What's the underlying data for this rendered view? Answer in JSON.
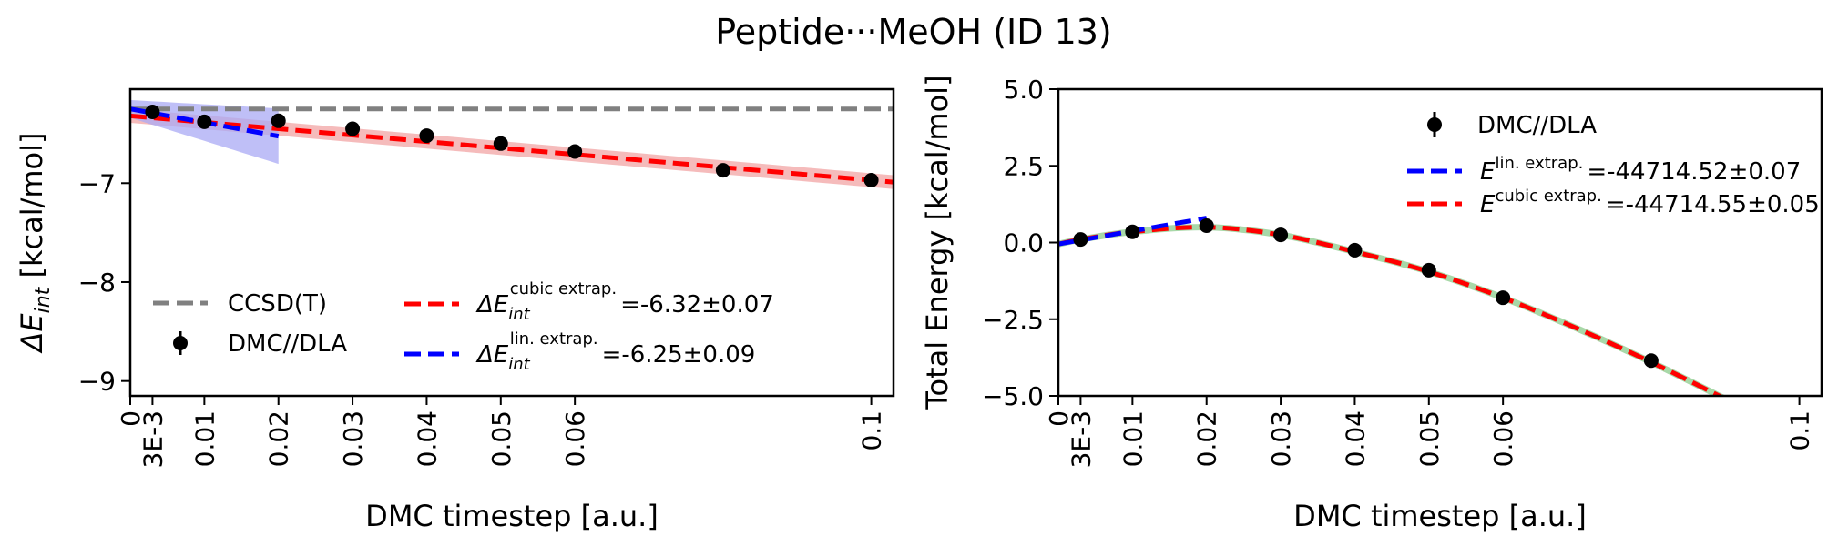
{
  "title": "Peptide···MeOH (ID 13)",
  "colors": {
    "ccsd": "#808080",
    "cubic": "#ff0000",
    "cubic_band": "#f4b4b4",
    "linear": "#0000ff",
    "linear_band": "#aaaaf4",
    "dmc": "#000000",
    "cubic_right_overlay": "#a8d8a8"
  },
  "chart_data": [
    {
      "type": "line",
      "xlabel": "DMC timestep [a.u.]",
      "ylabel_main": "ΔE",
      "ylabel_sub": "int",
      "ylabel_unit": " [kcal/mol]",
      "xlim": [
        0,
        0.103
      ],
      "ylim": [
        -9.15,
        -6.05
      ],
      "xticks": [
        0,
        0.003,
        0.01,
        0.02,
        0.03,
        0.04,
        0.05,
        0.06,
        0.1
      ],
      "xtick_labels": [
        "0",
        "3E-3",
        "0.01",
        "0.02",
        "0.03",
        "0.04",
        "0.05",
        "0.06",
        "0.1"
      ],
      "yticks": [
        -9,
        -8,
        -7
      ],
      "ytick_labels": [
        "−9",
        "−8",
        "−7"
      ],
      "ccsd_value": -6.25,
      "dmc_points": {
        "x": [
          0.003,
          0.01,
          0.02,
          0.03,
          0.04,
          0.05,
          0.06,
          0.08,
          0.1
        ],
        "y": [
          -6.28,
          -6.38,
          -6.37,
          -6.45,
          -6.52,
          -6.6,
          -6.68,
          -6.87,
          -6.97
        ]
      },
      "cubic_fit": {
        "E0": -6.32,
        "slope": -6.5,
        "band": 0.07,
        "x_end": 0.103
      },
      "linear_fit": {
        "E0": -6.25,
        "slope": -13.75,
        "x_end": 0.02,
        "band_start": 0.09,
        "band_end": 0.28
      },
      "legend": {
        "ccsd": "CCSD(T)",
        "dmc": "DMC//DLA",
        "cubic_main": "ΔE",
        "cubic_sub": "int",
        "cubic_sup": "cubic extrap.",
        "cubic_value": "=-6.32±0.07",
        "linear_main": "ΔE",
        "linear_sub": "int",
        "linear_sup": "lin. extrap.",
        "linear_value": "=-6.25±0.09"
      }
    },
    {
      "type": "line",
      "xlabel": "DMC timestep [a.u.]",
      "ylabel": "Total Energy [kcal/mol]",
      "xlim": [
        0,
        0.103
      ],
      "ylim": [
        -5.0,
        5.0
      ],
      "xticks": [
        0,
        0.003,
        0.01,
        0.02,
        0.03,
        0.04,
        0.05,
        0.06,
        0.1
      ],
      "xtick_labels": [
        "0",
        "3E-3",
        "0.01",
        "0.02",
        "0.03",
        "0.04",
        "0.05",
        "0.06",
        "0.1"
      ],
      "yticks": [
        5.0,
        2.5,
        0.0,
        -2.5,
        -5.0
      ],
      "ytick_labels": [
        "5.0",
        "2.5",
        "0.0",
        "−2.5",
        "−5.0"
      ],
      "dmc_points": {
        "x": [
          0.003,
          0.01,
          0.02,
          0.03,
          0.04,
          0.05,
          0.06,
          0.08
        ],
        "y": [
          0.1,
          0.35,
          0.55,
          0.25,
          -0.25,
          -0.9,
          -1.8,
          -3.85
        ]
      },
      "cubic_curve": {
        "x": [
          0,
          0.003,
          0.01,
          0.02,
          0.03,
          0.04,
          0.05,
          0.06,
          0.07,
          0.08,
          0.09
        ],
        "y": [
          -0.05,
          0.1,
          0.35,
          0.5,
          0.25,
          -0.3,
          -0.95,
          -1.8,
          -2.8,
          -3.9,
          -5.1
        ]
      },
      "linear_curve": {
        "x": [
          0,
          0.02
        ],
        "y": [
          -0.05,
          0.8
        ]
      },
      "legend": {
        "dmc": "DMC//DLA",
        "linear_main": "E",
        "linear_sup": "lin. extrap.",
        "linear_value": "=-44714.52±0.07",
        "cubic_main": "E",
        "cubic_sup": "cubic extrap.",
        "cubic_value": "=-44714.55±0.05"
      }
    }
  ]
}
